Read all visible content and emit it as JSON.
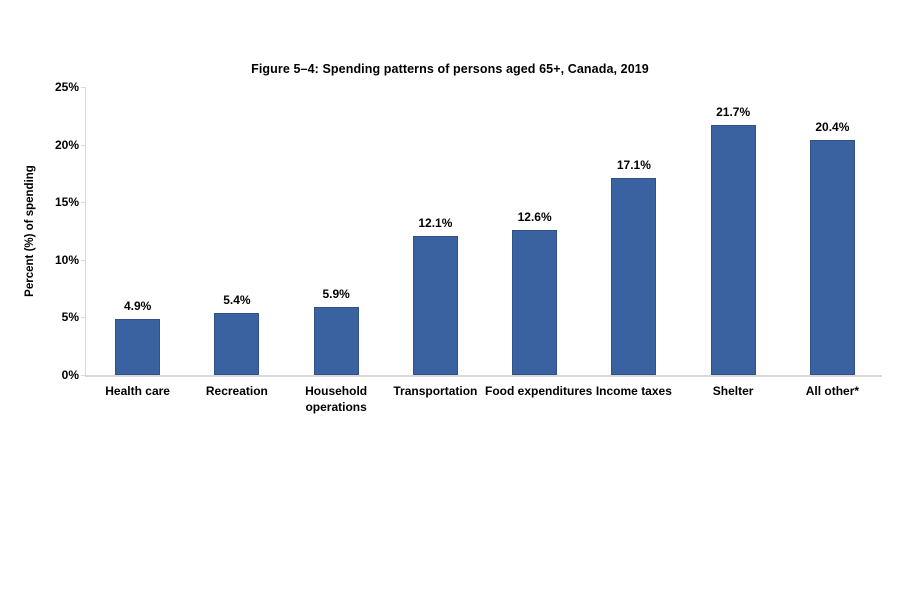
{
  "figure": {
    "title": "Figure 5–4: Spending patterns of persons aged 65+, Canada, 2019"
  },
  "chart_data": {
    "type": "bar",
    "title": "Figure 5–4: Spending patterns of persons aged 65+, Canada, 2019",
    "categories": [
      "Health care",
      "Recreation",
      "Household\noperations",
      "Transportation",
      "Food expenditures",
      "Income taxes",
      "Shelter",
      "All other*"
    ],
    "values": [
      4.9,
      5.4,
      5.9,
      12.1,
      12.6,
      17.1,
      21.7,
      20.4
    ],
    "data_labels": [
      "4.9%",
      "5.4%",
      "5.9%",
      "12.1%",
      "12.6%",
      "17.1%",
      "21.7%",
      "20.4%"
    ],
    "xlabel": "",
    "ylabel": "Percent (%) of spending",
    "ylim": [
      0,
      25
    ],
    "yticks": [
      0,
      5,
      10,
      15,
      20,
      25
    ],
    "ytick_labels": [
      "0%",
      "5%",
      "10%",
      "15%",
      "20%",
      "25%"
    ],
    "grid": false,
    "legend": "none",
    "colors": {
      "bar_fill": "#3A62A0",
      "bar_border": "#2F5186",
      "axis_line": "#D9D9D9",
      "text": "#000000",
      "background": "#FFFFFF"
    }
  }
}
